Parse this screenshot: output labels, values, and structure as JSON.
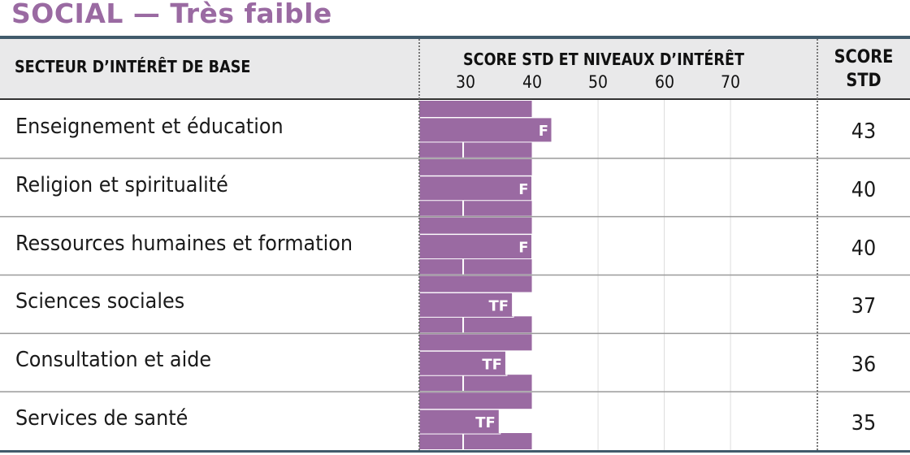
{
  "title": "SOCIAL — Très faible",
  "header": {
    "sector": "SECTEUR D’INTÉRÊT DE BASE",
    "score_levels": "SCORE STD ET NIVEAUX D’INTÉRÊT",
    "score_std_line1": "SCORE",
    "score_std_line2": "STD"
  },
  "colors": {
    "accent": "#9a6aa2",
    "rule": "#415a6b",
    "header_bg": "#e9e9ea"
  },
  "chart_data": {
    "type": "bar",
    "xlim": [
      23,
      83
    ],
    "ticks": [
      30,
      40,
      50,
      60,
      70
    ],
    "tick_labels": [
      "30",
      "40",
      "50",
      "60",
      "70"
    ],
    "categories": [
      "Enseignement et éducation",
      "Religion et spiritualité",
      "Ressources humaines et formation",
      "Sciences sociales",
      "Consultation et aide",
      "Services de santé"
    ],
    "values": [
      43,
      40,
      40,
      37,
      36,
      35
    ],
    "value_labels": [
      "F",
      "F",
      "F",
      "TF",
      "TF",
      "TF"
    ],
    "scores": [
      "43",
      "40",
      "40",
      "37",
      "36",
      "35"
    ]
  }
}
